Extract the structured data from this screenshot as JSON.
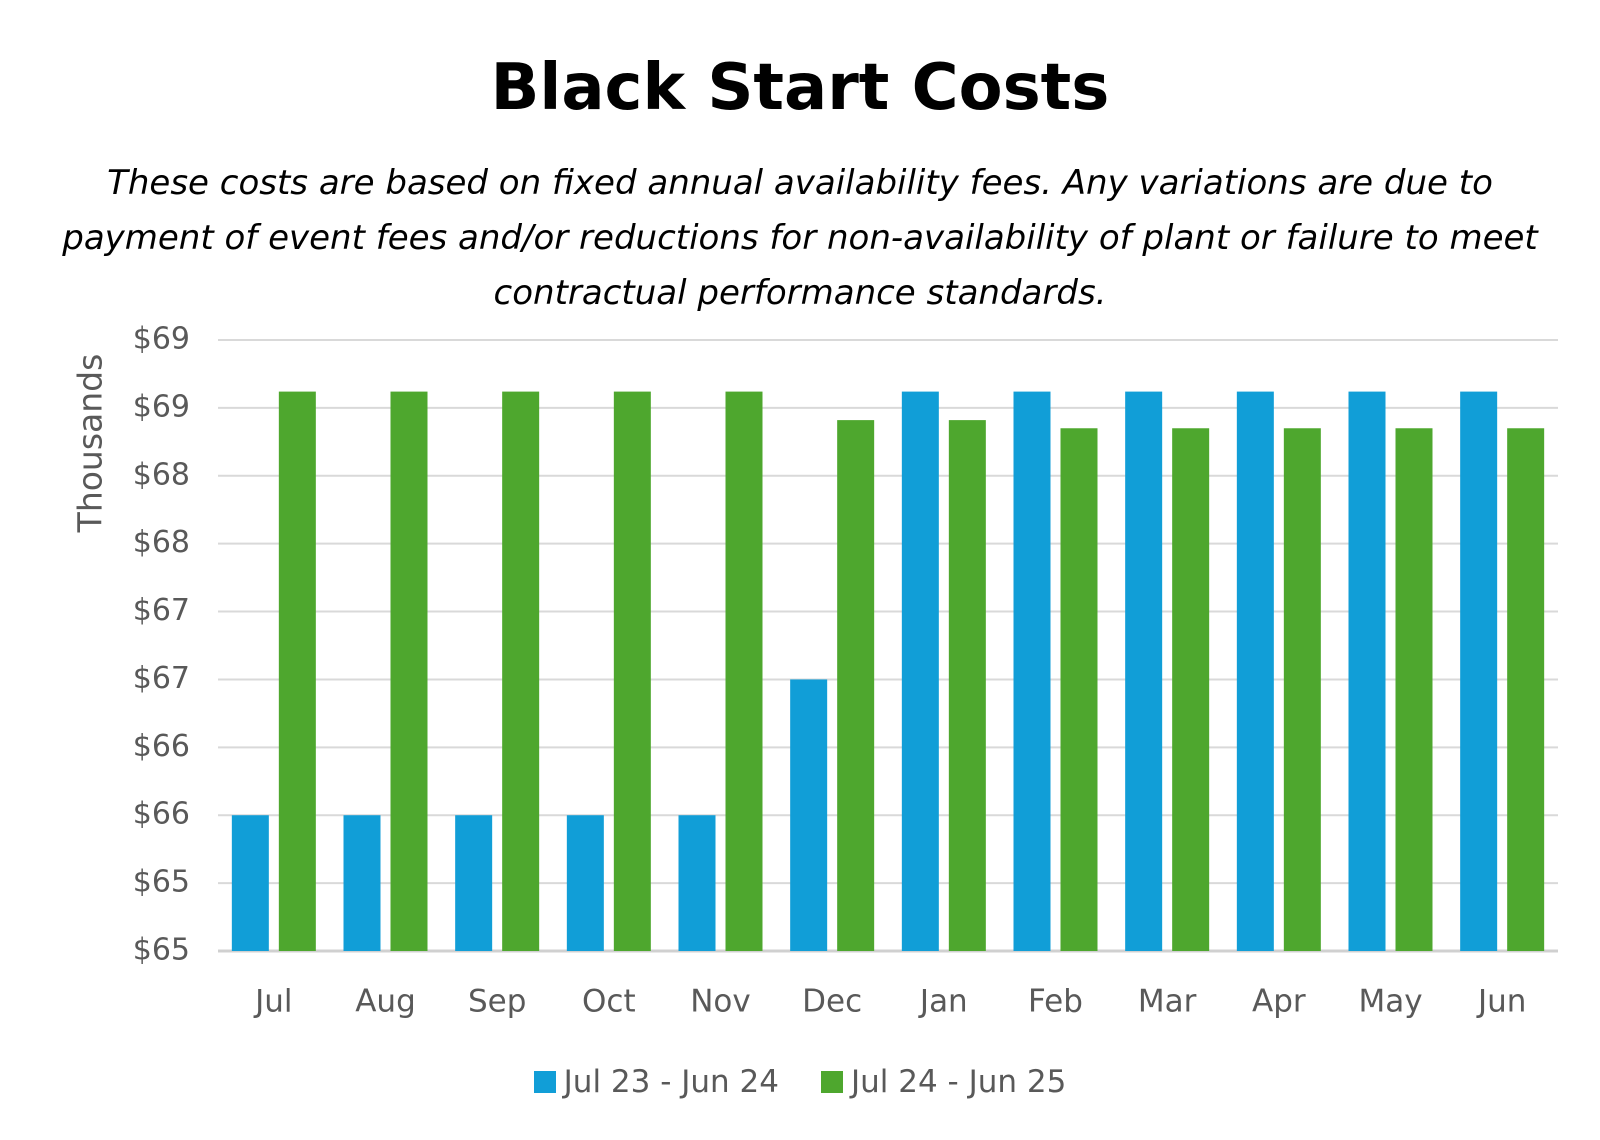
{
  "chart_data": {
    "type": "bar",
    "title": "Black Start Costs",
    "subtitle": "These costs are based on fixed annual availability fees.  Any variations are due to payment of event fees and/or  reductions for non-availability of plant or failure to meet contractual performance standards.",
    "ylabel": "Thousands",
    "xlabel": "",
    "ylim": [
      64.75,
      69.25
    ],
    "y_ticks": [
      {
        "value": 64.75,
        "label": "$65"
      },
      {
        "value": 65.25,
        "label": "$65"
      },
      {
        "value": 65.75,
        "label": "$66"
      },
      {
        "value": 66.25,
        "label": "$66"
      },
      {
        "value": 66.75,
        "label": "$67"
      },
      {
        "value": 67.25,
        "label": "$67"
      },
      {
        "value": 67.75,
        "label": "$68"
      },
      {
        "value": 68.25,
        "label": "$68"
      },
      {
        "value": 68.75,
        "label": "$69"
      },
      {
        "value": 69.25,
        "label": "$69"
      }
    ],
    "categories": [
      "Jul",
      "Aug",
      "Sep",
      "Oct",
      "Nov",
      "Dec",
      "Jan",
      "Feb",
      "Mar",
      "Apr",
      "May",
      "Jun"
    ],
    "series": [
      {
        "name": "Jul 23 - Jun 24",
        "color": "#119ed7",
        "values": [
          65.75,
          65.75,
          65.75,
          65.75,
          65.75,
          66.75,
          68.87,
          68.87,
          68.87,
          68.87,
          68.87,
          68.87
        ]
      },
      {
        "name": "Jul 24 - Jun 25",
        "color": "#4ea72e",
        "values": [
          68.87,
          68.87,
          68.87,
          68.87,
          68.87,
          68.66,
          68.66,
          68.6,
          68.6,
          68.6,
          68.6,
          68.6
        ]
      }
    ],
    "grid": true,
    "legend_position": "bottom"
  }
}
